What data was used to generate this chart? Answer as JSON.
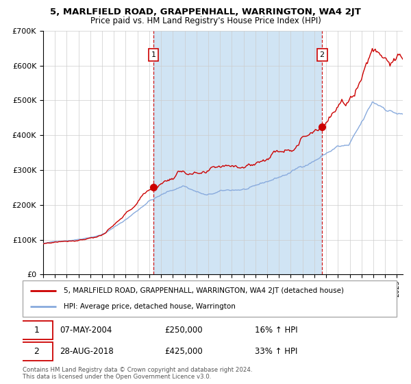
{
  "title": "5, MARLFIELD ROAD, GRAPPENHALL, WARRINGTON, WA4 2JT",
  "subtitle": "Price paid vs. HM Land Registry's House Price Index (HPI)",
  "sale1_date": "07-MAY-2004",
  "sale1_price": 250000,
  "sale1_hpi_pct": "16%",
  "sale1_label": "1",
  "sale2_date": "28-AUG-2018",
  "sale2_price": 425000,
  "sale2_hpi_pct": "33%",
  "sale2_label": "2",
  "red_line_color": "#cc0000",
  "blue_line_color": "#88aadd",
  "bg_color": "#e8f0f8",
  "shade_color": "#d0e4f4",
  "plot_bg": "#ffffff",
  "grid_color": "#cccccc",
  "sale1_x": 2004.35,
  "sale2_x": 2018.65,
  "ylim_max": 700000,
  "ylim_min": 0,
  "xlim_min": 1995,
  "xlim_max": 2025.5,
  "footer": "Contains HM Land Registry data © Crown copyright and database right 2024.\nThis data is licensed under the Open Government Licence v3.0.",
  "legend_line1": "5, MARLFIELD ROAD, GRAPPENHALL, WARRINGTON, WA4 2JT (detached house)",
  "legend_line2": "HPI: Average price, detached house, Warrington"
}
